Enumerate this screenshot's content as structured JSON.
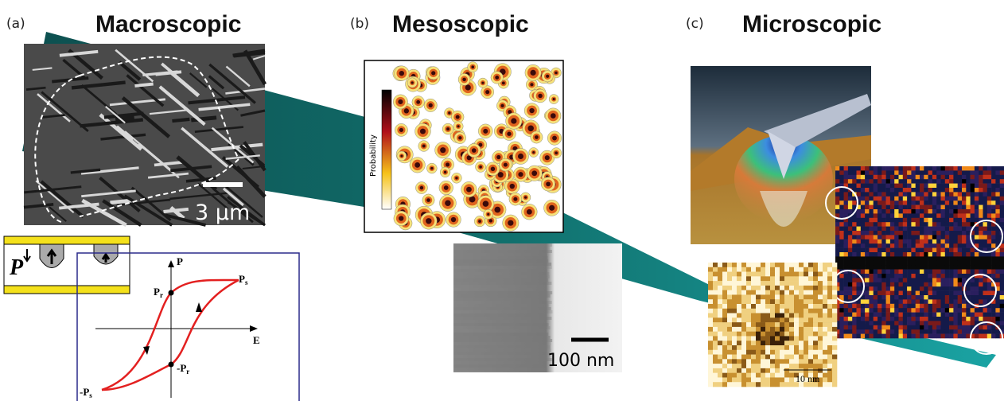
{
  "panels": [
    {
      "label": "(a)",
      "title": "Macroscopic",
      "scale_bar": "3 μm",
      "hysteresis": {
        "p_axis": "P",
        "e_axis": "E",
        "ps": {
          "symbol": "P",
          "sub": "s"
        },
        "pr": {
          "symbol": "P",
          "sub": "r"
        },
        "neg_pr": {
          "symbol": "-P",
          "sub": "r"
        },
        "neg_ps": {
          "symbol": "-P",
          "sub": "s"
        }
      },
      "capacitor_label": "P"
    },
    {
      "label": "(b)",
      "title": "Mesoscopic",
      "colorbar_label": "Probability",
      "scale_bar": "100 nm"
    },
    {
      "label": "(c)",
      "title": "Microscopic",
      "scale_bar": "10 nm"
    }
  ]
}
